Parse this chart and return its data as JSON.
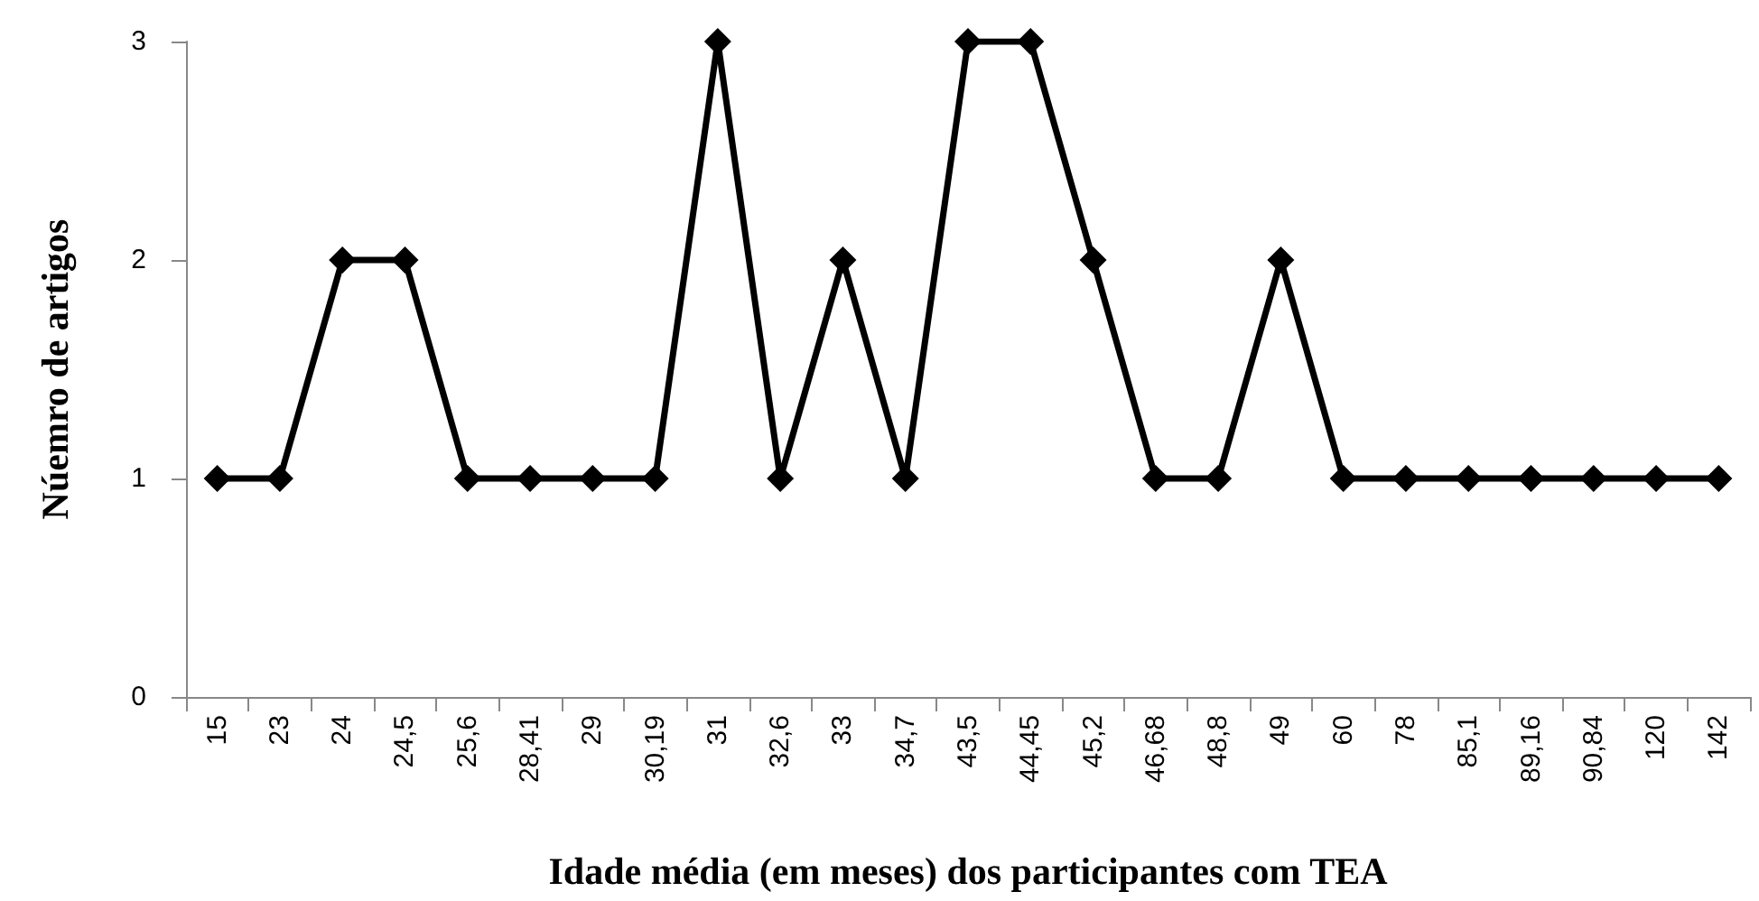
{
  "chart_data": {
    "type": "line",
    "xlabel": "Idade média (em meses) dos participantes com TEA",
    "ylabel": "Núemro de artigos",
    "categories": [
      "15",
      "23",
      "24",
      "24,5",
      "25,6",
      "28,41",
      "29",
      "30,19",
      "31",
      "32,6",
      "33",
      "34,7",
      "43,5",
      "44,45",
      "45,2",
      "46,68",
      "48,8",
      "49",
      "60",
      "78",
      "85,1",
      "89,16",
      "90,84",
      "120",
      "142"
    ],
    "series": [
      {
        "color": "#000000",
        "values": [
          1,
          1,
          2,
          2,
          1,
          1,
          1,
          1,
          3,
          1,
          2,
          1,
          3,
          3,
          2,
          1,
          1,
          2,
          1,
          1,
          1,
          1,
          1,
          1,
          1
        ]
      }
    ],
    "ylim": [
      0,
      3
    ],
    "yticks": [
      0,
      1,
      2,
      3
    ],
    "grid": false,
    "marker": "diamond",
    "line_style": "solid"
  }
}
